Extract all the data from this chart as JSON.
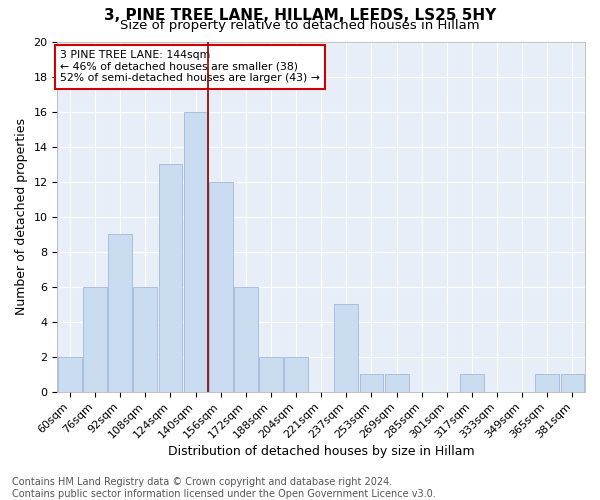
{
  "title1": "3, PINE TREE LANE, HILLAM, LEEDS, LS25 5HY",
  "title2": "Size of property relative to detached houses in Hillam",
  "xlabel": "Distribution of detached houses by size in Hillam",
  "ylabel": "Number of detached properties",
  "bar_labels": [
    "60sqm",
    "76sqm",
    "92sqm",
    "108sqm",
    "124sqm",
    "140sqm",
    "156sqm",
    "172sqm",
    "188sqm",
    "204sqm",
    "221sqm",
    "237sqm",
    "253sqm",
    "269sqm",
    "285sqm",
    "301sqm",
    "317sqm",
    "333sqm",
    "349sqm",
    "365sqm",
    "381sqm"
  ],
  "bar_values": [
    2,
    6,
    9,
    6,
    13,
    16,
    12,
    6,
    2,
    2,
    0,
    5,
    1,
    1,
    0,
    0,
    1,
    0,
    0,
    1,
    1
  ],
  "bar_color": "#c9dcf0",
  "bar_edgecolor": "#a8c0dc",
  "vline_x": 5.5,
  "vline_color": "#8b0000",
  "annotation_text": "3 PINE TREE LANE: 144sqm\n← 46% of detached houses are smaller (38)\n52% of semi-detached houses are larger (43) →",
  "annotation_box_color": "white",
  "annotation_box_edgecolor": "#cc0000",
  "ylim": [
    0,
    20
  ],
  "yticks": [
    0,
    2,
    4,
    6,
    8,
    10,
    12,
    14,
    16,
    18,
    20
  ],
  "footnote": "Contains HM Land Registry data © Crown copyright and database right 2024.\nContains public sector information licensed under the Open Government Licence v3.0.",
  "background_color": "#e8eef8",
  "title1_fontsize": 11,
  "title2_fontsize": 9.5,
  "xlabel_fontsize": 9,
  "ylabel_fontsize": 9,
  "tick_fontsize": 8,
  "footnote_fontsize": 7,
  "annotation_fontsize": 7.8
}
